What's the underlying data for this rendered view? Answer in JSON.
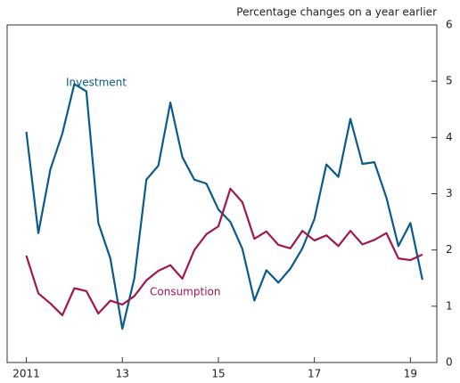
{
  "chart_data": {
    "type": "line",
    "subtitle": "Percentage changes on a year earlier",
    "x": [
      2011,
      2011.25,
      2011.5,
      2011.75,
      2012,
      2012.25,
      2012.5,
      2012.75,
      2013,
      2013.25,
      2013.5,
      2013.75,
      2014,
      2014.25,
      2014.5,
      2014.75,
      2015,
      2015.25,
      2015.5,
      2015.75,
      2016,
      2016.25,
      2016.5,
      2016.75,
      2017,
      2017.25,
      2017.5,
      2017.75,
      2018,
      2018.25,
      2018.5,
      2018.75,
      2019,
      2019.25
    ],
    "series": [
      {
        "name": "Investment",
        "color": "#0b5a8e",
        "values": [
          4.1,
          2.3,
          3.43,
          4.07,
          4.95,
          4.82,
          2.48,
          1.85,
          0.6,
          1.5,
          3.25,
          3.5,
          4.62,
          3.65,
          3.25,
          3.18,
          2.72,
          2.5,
          2.02,
          1.1,
          1.64,
          1.42,
          1.67,
          2.03,
          2.55,
          3.52,
          3.3,
          4.33,
          3.53,
          3.56,
          2.93,
          2.07,
          2.48,
          1.47
        ]
      },
      {
        "name": "Consumption",
        "color": "#a3174f",
        "values": [
          1.9,
          1.23,
          1.05,
          0.84,
          1.32,
          1.27,
          0.87,
          1.1,
          1.03,
          1.18,
          1.46,
          1.63,
          1.73,
          1.49,
          2.0,
          2.28,
          2.42,
          3.09,
          2.85,
          2.2,
          2.33,
          2.09,
          2.03,
          2.34,
          2.17,
          2.26,
          2.07,
          2.34,
          2.1,
          2.18,
          2.3,
          1.85,
          1.82,
          1.92
        ]
      }
    ],
    "xlim": [
      2010.6,
      2019.55
    ],
    "xticks": [
      2011,
      {
        "value": 2013,
        "label": "13"
      },
      {
        "value": 2015,
        "label": "15"
      },
      {
        "value": 2017,
        "label": "17"
      },
      {
        "value": 2019,
        "label": "19"
      }
    ],
    "ylim": [
      0,
      6
    ],
    "yticks": [
      0,
      1,
      2,
      3,
      4,
      5,
      6
    ],
    "y_axis_side": "right"
  }
}
